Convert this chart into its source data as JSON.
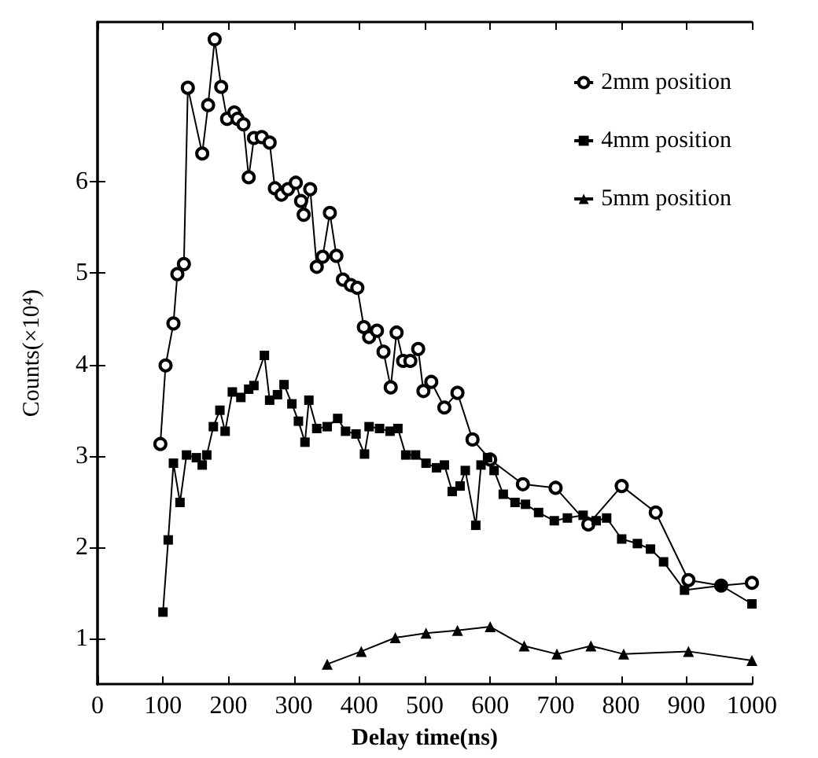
{
  "chart_data": {
    "type": "line",
    "xlabel": "Delay time(ns)",
    "ylabel": "Counts(×10⁴)",
    "xlim": [
      0,
      1000
    ],
    "ylim": [
      0.5,
      7.75
    ],
    "xticks": [
      0,
      100,
      200,
      300,
      400,
      500,
      600,
      700,
      800,
      900,
      1000
    ],
    "yticks": [
      1,
      2,
      3,
      4,
      5,
      6
    ],
    "grid": false,
    "legend": "top right",
    "line_style": "solid",
    "series": [
      {
        "name": "2mm position",
        "color": "#000000",
        "marker": "circle",
        "x": [
          96,
          104,
          116,
          122,
          132,
          138,
          160,
          169,
          179,
          189,
          198,
          209,
          214,
          223,
          231,
          239,
          251,
          263,
          271,
          281,
          291,
          303,
          311,
          315,
          325,
          335,
          344,
          355,
          365,
          375,
          387,
          397,
          407,
          415,
          427,
          437,
          448,
          457,
          467,
          478,
          490,
          498,
          510,
          530,
          550,
          573,
          600,
          650,
          700,
          750,
          801,
          853,
          903,
          953,
          1000
        ],
        "values": [
          3.13,
          3.99,
          4.45,
          4.99,
          5.1,
          7.03,
          6.31,
          6.84,
          7.56,
          7.04,
          6.69,
          6.76,
          6.69,
          6.63,
          6.05,
          6.48,
          6.49,
          6.43,
          5.93,
          5.86,
          5.92,
          5.99,
          5.79,
          5.64,
          5.92,
          5.07,
          5.18,
          5.66,
          5.19,
          4.93,
          4.87,
          4.84,
          4.41,
          4.3,
          4.37,
          4.14,
          3.75,
          4.35,
          4.04,
          4.04,
          4.17,
          3.71,
          3.81,
          3.53,
          3.69,
          3.18,
          2.96,
          2.69,
          2.65,
          2.25,
          2.67,
          2.38,
          1.64,
          1.58,
          1.61
        ]
      },
      {
        "name": "4mm position",
        "color": "#000000",
        "marker": "square",
        "x": [
          100,
          108,
          116,
          126,
          136,
          151,
          160,
          167,
          177,
          187,
          195,
          206,
          219,
          231,
          239,
          255,
          263,
          275,
          285,
          297,
          307,
          317,
          323,
          335,
          351,
          367,
          379,
          395,
          408,
          415,
          431,
          447,
          459,
          471,
          486,
          502,
          518,
          530,
          542,
          554,
          562,
          578,
          586,
          596,
          606,
          620,
          638,
          654,
          674,
          698,
          718,
          742,
          762,
          778,
          801,
          825,
          845,
          865,
          897,
          953,
          1000
        ],
        "values": [
          1.29,
          2.08,
          2.92,
          2.49,
          3.01,
          2.98,
          2.9,
          3.01,
          3.32,
          3.5,
          3.27,
          3.7,
          3.64,
          3.73,
          3.77,
          4.1,
          3.61,
          3.67,
          3.78,
          3.57,
          3.38,
          3.15,
          3.61,
          3.3,
          3.32,
          3.41,
          3.27,
          3.24,
          3.02,
          3.32,
          3.3,
          3.27,
          3.3,
          3.01,
          3.01,
          2.92,
          2.87,
          2.9,
          2.61,
          2.67,
          2.84,
          2.24,
          2.9,
          2.98,
          2.84,
          2.58,
          2.49,
          2.47,
          2.38,
          2.29,
          2.32,
          2.35,
          2.29,
          2.32,
          2.09,
          2.04,
          1.98,
          1.84,
          1.53,
          1.58,
          1.38
        ]
      },
      {
        "name": "5mm position",
        "color": "#000000",
        "marker": "triangle",
        "x": [
          351,
          403,
          455,
          502,
          550,
          600,
          652,
          702,
          754,
          804,
          903,
          1000
        ],
        "values": [
          0.72,
          0.86,
          1.01,
          1.06,
          1.09,
          1.13,
          0.92,
          0.83,
          0.92,
          0.83,
          0.86,
          0.76
        ]
      }
    ]
  }
}
